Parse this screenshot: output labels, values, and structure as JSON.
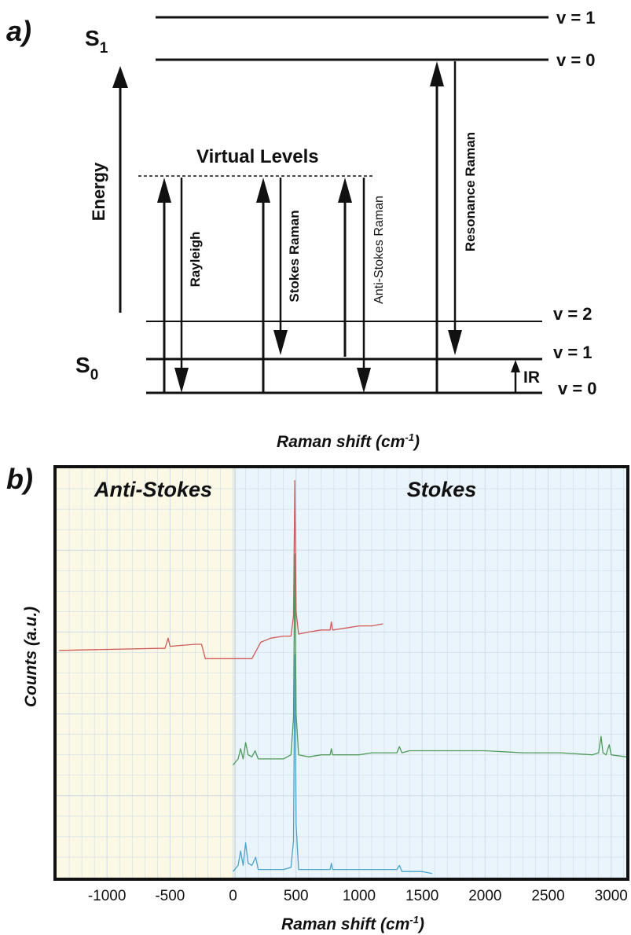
{
  "panel_a": {
    "label": "a)",
    "s1_label": "S",
    "s1_sub": "1",
    "s0_label": "S",
    "s0_sub": "0",
    "energy_label": "Energy",
    "virtual_levels_label": "Virtual Levels",
    "s1_levels": [
      "v = 1",
      "v = 0"
    ],
    "s0_levels": [
      "v = 2",
      "v = 1",
      "v = 0"
    ],
    "transitions": [
      "Rayleigh",
      "Stokes Raman",
      "Anti-Stokes Raman",
      "Resonance Raman"
    ],
    "ir_label": "IR",
    "caption": "Raman shift (cm",
    "caption_sup": "-1",
    "caption_end": ")"
  },
  "panel_b": {
    "label": "b)",
    "region_left": "Anti-Stokes",
    "region_right": "Stokes",
    "colors": {
      "anti_stokes_bg": "#fbf9e5",
      "stokes_bg": "#eaf4fb",
      "frame": "#111111",
      "grid": "#cfdbe6"
    }
  },
  "chart_data": {
    "type": "line",
    "xlabel": "Raman shift (cm-1)",
    "ylabel": "Counts (a.u.)",
    "xlim": [
      -1400,
      3120
    ],
    "xticks": [
      "-1000",
      "-500",
      "0",
      "500",
      "1000",
      "1500",
      "2000",
      "2500",
      "3000"
    ],
    "x_tick_values": [
      -1000,
      -500,
      0,
      500,
      1000,
      1500,
      2000,
      2500,
      3000
    ],
    "yticks": [],
    "grid": true,
    "series": [
      {
        "color": "#d05a5a",
        "points": [
          [
            -1380,
            0.555
          ],
          [
            -600,
            0.56
          ],
          [
            -540,
            0.56
          ],
          [
            -515,
            0.585
          ],
          [
            -500,
            0.565
          ],
          [
            -300,
            0.57
          ],
          [
            -250,
            0.57
          ],
          [
            -220,
            0.535
          ],
          [
            -150,
            0.535
          ],
          [
            0,
            0.535
          ],
          [
            150,
            0.535
          ],
          [
            220,
            0.575
          ],
          [
            300,
            0.585
          ],
          [
            400,
            0.59
          ],
          [
            460,
            0.59
          ],
          [
            480,
            0.64
          ],
          [
            490,
            0.97
          ],
          [
            500,
            0.65
          ],
          [
            520,
            0.595
          ],
          [
            600,
            0.6
          ],
          [
            700,
            0.605
          ],
          [
            770,
            0.605
          ],
          [
            780,
            0.625
          ],
          [
            790,
            0.605
          ],
          [
            900,
            0.61
          ],
          [
            1000,
            0.615
          ],
          [
            1100,
            0.615
          ],
          [
            1190,
            0.62
          ]
        ]
      },
      {
        "color": "#4f9a5a",
        "points": [
          [
            0,
            0.275
          ],
          [
            40,
            0.29
          ],
          [
            60,
            0.315
          ],
          [
            80,
            0.29
          ],
          [
            100,
            0.33
          ],
          [
            120,
            0.3
          ],
          [
            150,
            0.295
          ],
          [
            175,
            0.31
          ],
          [
            200,
            0.29
          ],
          [
            300,
            0.29
          ],
          [
            400,
            0.29
          ],
          [
            460,
            0.3
          ],
          [
            480,
            0.39
          ],
          [
            490,
            0.79
          ],
          [
            500,
            0.4
          ],
          [
            520,
            0.3
          ],
          [
            600,
            0.295
          ],
          [
            700,
            0.3
          ],
          [
            770,
            0.3
          ],
          [
            780,
            0.315
          ],
          [
            790,
            0.3
          ],
          [
            900,
            0.3
          ],
          [
            1000,
            0.3
          ],
          [
            1100,
            0.305
          ],
          [
            1300,
            0.305
          ],
          [
            1320,
            0.32
          ],
          [
            1340,
            0.305
          ],
          [
            1400,
            0.31
          ],
          [
            1500,
            0.31
          ],
          [
            1700,
            0.31
          ],
          [
            2000,
            0.31
          ],
          [
            2300,
            0.305
          ],
          [
            2600,
            0.305
          ],
          [
            2850,
            0.3
          ],
          [
            2900,
            0.305
          ],
          [
            2920,
            0.345
          ],
          [
            2935,
            0.305
          ],
          [
            2960,
            0.3
          ],
          [
            2985,
            0.325
          ],
          [
            3000,
            0.3
          ],
          [
            3120,
            0.295
          ]
        ]
      },
      {
        "color": "#4aa3cc",
        "points": [
          [
            0,
            0.015
          ],
          [
            40,
            0.03
          ],
          [
            60,
            0.065
          ],
          [
            80,
            0.03
          ],
          [
            100,
            0.085
          ],
          [
            120,
            0.035
          ],
          [
            150,
            0.03
          ],
          [
            180,
            0.05
          ],
          [
            200,
            0.02
          ],
          [
            300,
            0.02
          ],
          [
            400,
            0.02
          ],
          [
            460,
            0.025
          ],
          [
            480,
            0.09
          ],
          [
            490,
            0.545
          ],
          [
            500,
            0.13
          ],
          [
            520,
            0.02
          ],
          [
            600,
            0.02
          ],
          [
            700,
            0.02
          ],
          [
            770,
            0.02
          ],
          [
            780,
            0.035
          ],
          [
            790,
            0.02
          ],
          [
            900,
            0.02
          ],
          [
            1000,
            0.02
          ],
          [
            1100,
            0.02
          ],
          [
            1300,
            0.02
          ],
          [
            1320,
            0.03
          ],
          [
            1340,
            0.015
          ],
          [
            1500,
            0.015
          ],
          [
            1580,
            0.01
          ]
        ]
      }
    ]
  }
}
